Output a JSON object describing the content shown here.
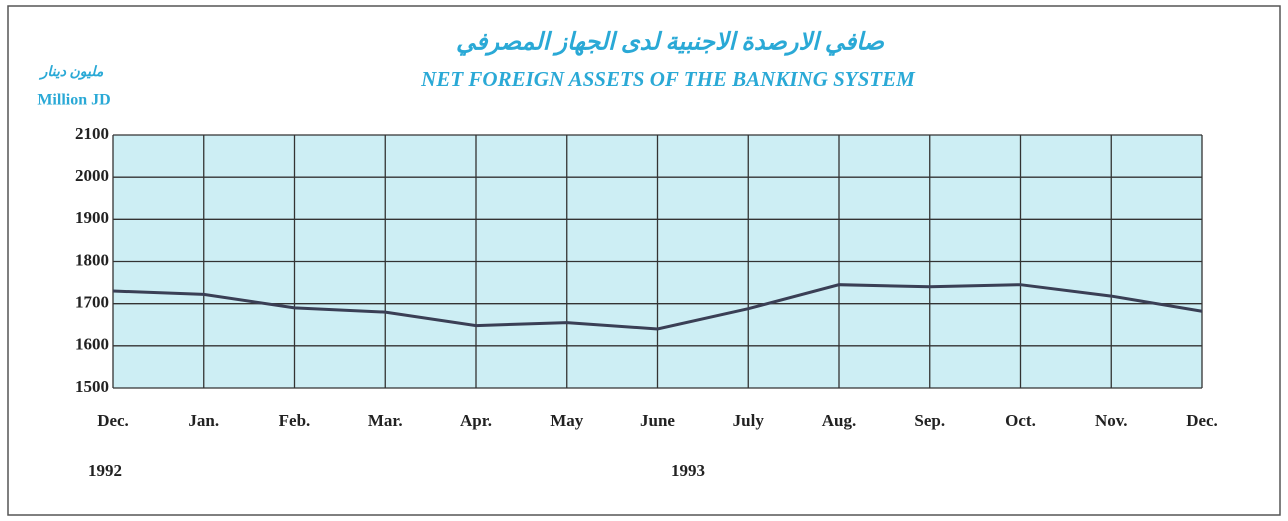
{
  "chart_data": {
    "type": "line",
    "title": "NET FOREIGN ASSETS OF THE BANKING SYSTEM",
    "title_ar": "صافي الارصدة الاجنبية لدى الجهاز المصرفي",
    "ylabel": "Million JD",
    "ylabel_ar": "مليون دينار",
    "annotations": [
      "1992",
      "1993"
    ],
    "categories": [
      "Dec.",
      "Jan.",
      "Feb.",
      "Mar.",
      "Apr.",
      "May",
      "June",
      "July",
      "Aug.",
      "Sep.",
      "Oct.",
      "Nov.",
      "Dec."
    ],
    "series": [
      {
        "name": "Net foreign assets",
        "color": "#3a3f55",
        "values": [
          1730,
          1722,
          1690,
          1680,
          1648,
          1655,
          1640,
          1688,
          1745,
          1740,
          1745,
          1718,
          1682
        ]
      }
    ],
    "ylim": [
      1500,
      2100
    ],
    "yticks": [
      1500,
      1600,
      1700,
      1800,
      1900,
      2000,
      2100
    ],
    "grid": true,
    "plot_background": "#cdeef4"
  }
}
